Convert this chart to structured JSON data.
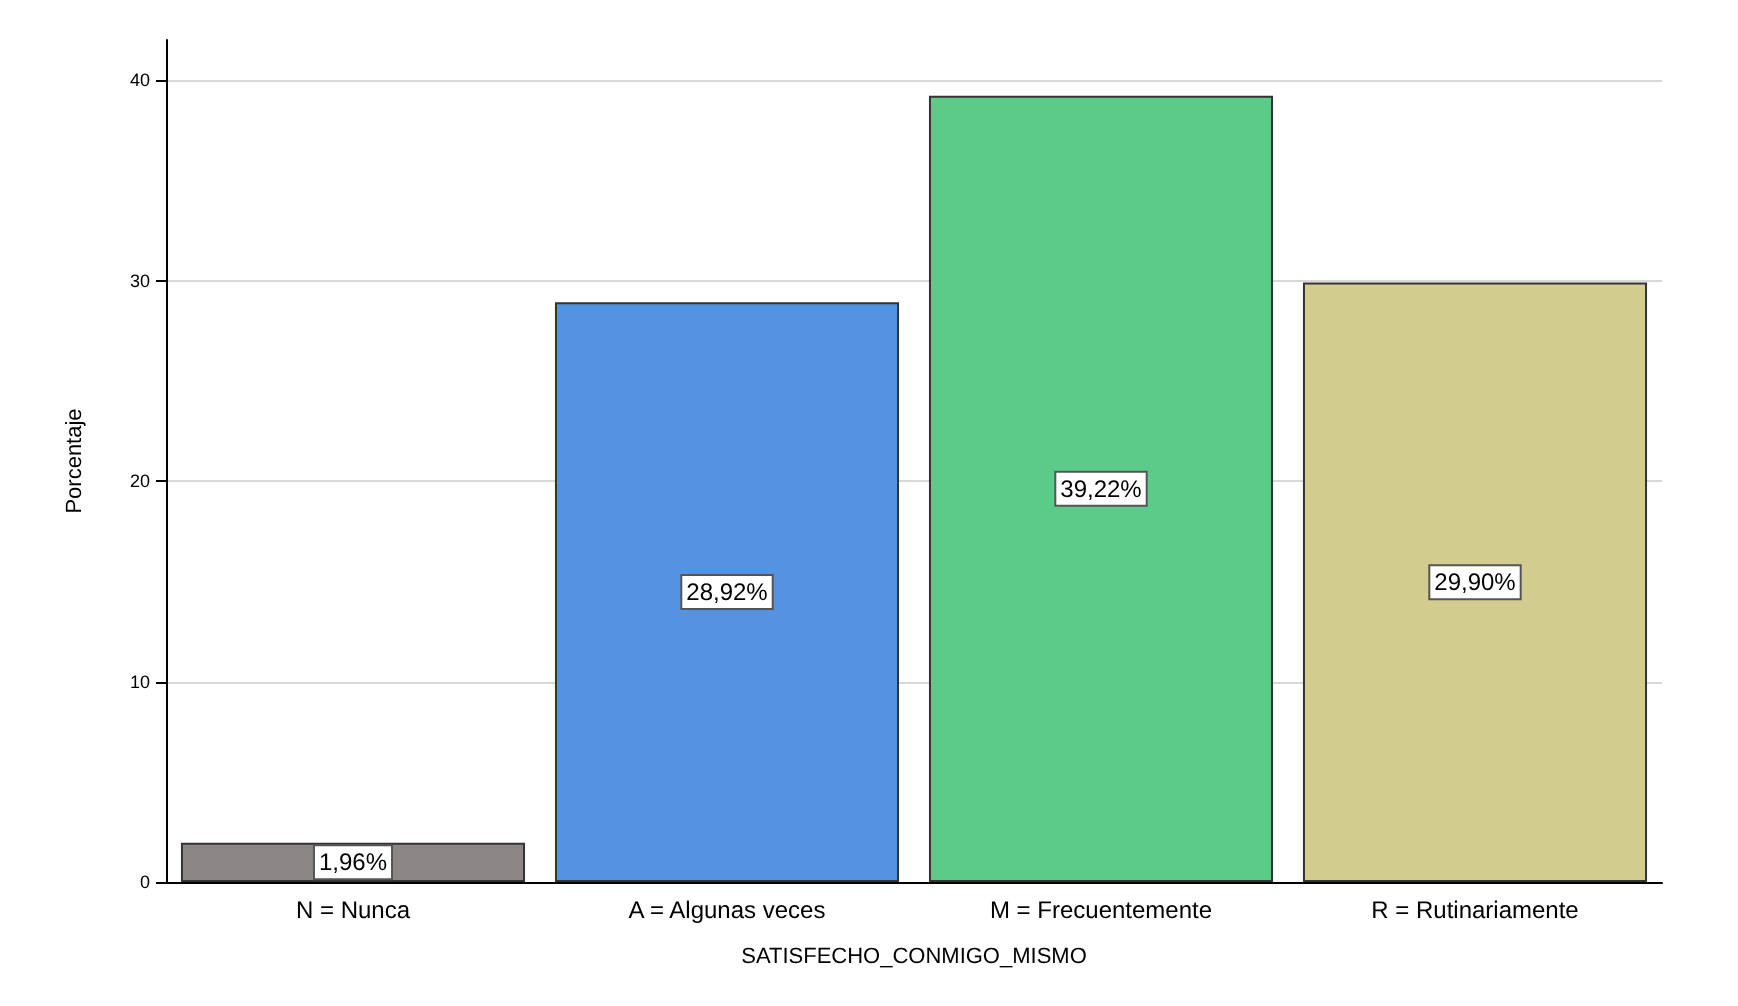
{
  "chart_data": {
    "type": "bar",
    "xlabel": "SATISFECHO_CONMIGO_MISMO",
    "ylabel": "Porcentaje",
    "categories": [
      "N = Nunca",
      "A = Algunas veces",
      "M = Frecuentemente",
      "R = Rutinariamente"
    ],
    "values": [
      1.96,
      28.92,
      39.22,
      29.9
    ],
    "value_labels": [
      "1,96%",
      "28,92%",
      "39,22%",
      "29,90%"
    ],
    "colors": [
      "#8c8686",
      "#5393e2",
      "#5ccb8a",
      "#d2cc8f"
    ],
    "ylim": [
      0,
      42
    ],
    "yticks": [
      0,
      10,
      20,
      30,
      40
    ],
    "grid": "y"
  }
}
